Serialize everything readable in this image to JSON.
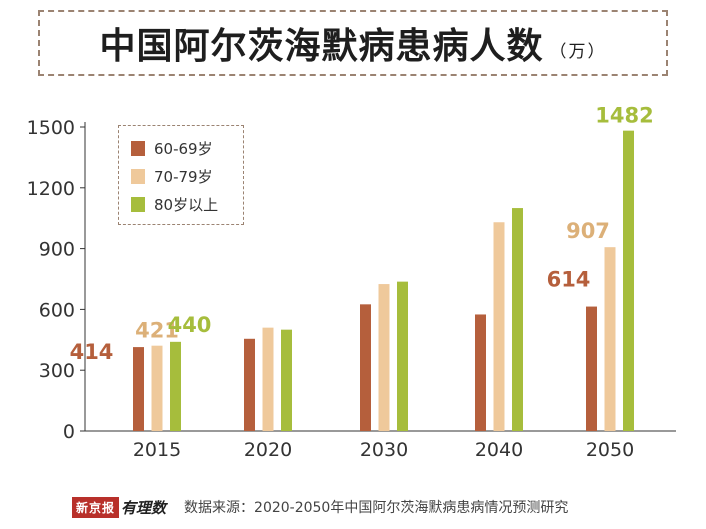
{
  "title": {
    "main": "中国阿尔茨海默病患病人数",
    "unit": "（万）"
  },
  "footer": {
    "logo_text": "新京报",
    "logo_script": "有理数",
    "source": "数据来源：2020-2050年中国阿尔茨海默病患病情况预测研究"
  },
  "chart_data": {
    "type": "bar",
    "title": "中国阿尔茨海默病患病人数",
    "unit": "（万）",
    "categories": [
      "2015",
      "2020",
      "2030",
      "2040",
      "2050"
    ],
    "series": [
      {
        "name": "60-69岁",
        "color": "#b55f3c",
        "values": [
          414,
          455,
          625,
          575,
          614
        ]
      },
      {
        "name": "70-79岁",
        "color": "#efc99b",
        "values": [
          421,
          510,
          725,
          1030,
          907
        ]
      },
      {
        "name": "80岁以上",
        "color": "#a6bd3c",
        "values": [
          440,
          500,
          737,
          1100,
          1482
        ]
      }
    ],
    "data_labels": [
      {
        "category": "2015",
        "series": "60-69岁",
        "text": "414",
        "color": "#b55f3c"
      },
      {
        "category": "2015",
        "series": "70-79岁",
        "text": "421",
        "color": "#dcb078"
      },
      {
        "category": "2015",
        "series": "80岁以上",
        "text": "440",
        "color": "#a6bd3c"
      },
      {
        "category": "2050",
        "series": "60-69岁",
        "text": "614",
        "color": "#b55f3c"
      },
      {
        "category": "2050",
        "series": "70-79岁",
        "text": "907",
        "color": "#dcb078"
      },
      {
        "category": "2050",
        "series": "80岁以上",
        "text": "1482",
        "color": "#a6bd3c"
      }
    ],
    "yticks": [
      0,
      300,
      600,
      900,
      1200,
      1500
    ],
    "ylim": [
      0,
      1500
    ],
    "legend_position": "top-left",
    "grid": false
  }
}
